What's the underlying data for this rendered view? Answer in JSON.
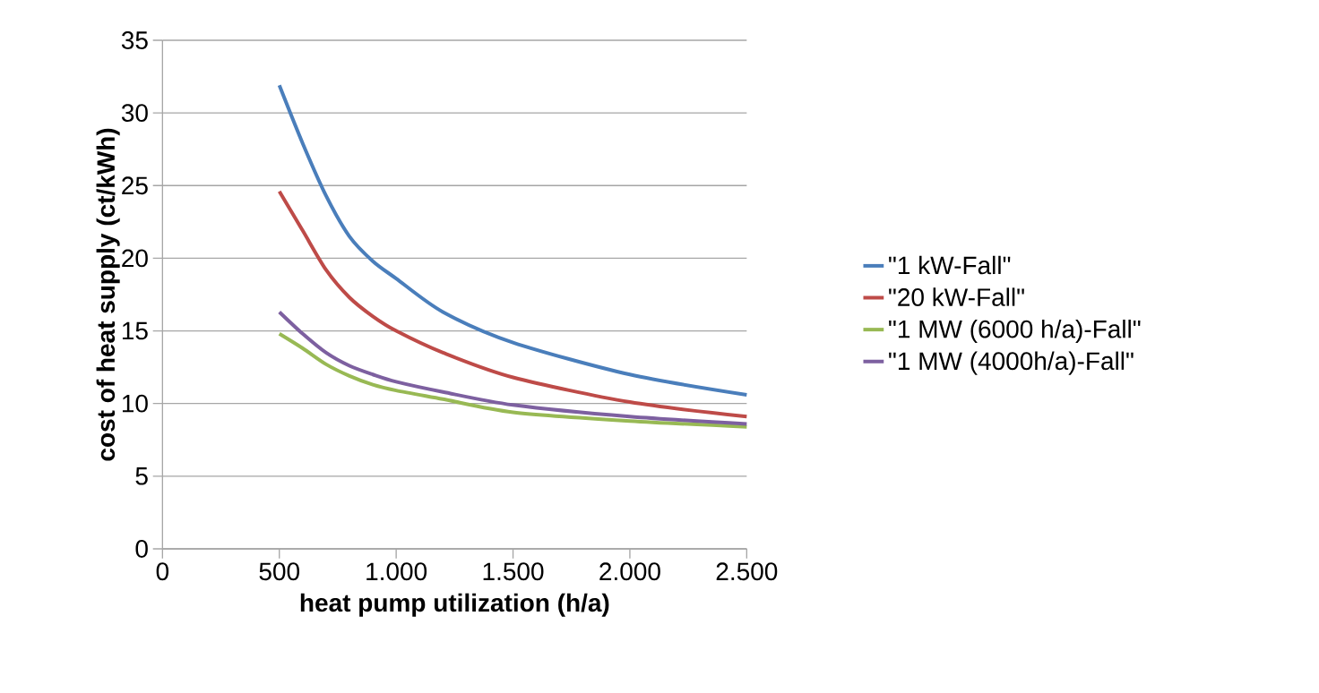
{
  "chart_data": {
    "type": "line",
    "xlabel": "heat pump utilization (h/a)",
    "ylabel": "cost of heat supply (ct/kWh)",
    "x": [
      500,
      600,
      700,
      800,
      900,
      1000,
      1200,
      1500,
      2000,
      2500
    ],
    "series": [
      {
        "name": "\"1 kW-Fall\"",
        "color": "#4a7ebb",
        "values": [
          31.9,
          27.9,
          24.3,
          21.5,
          19.8,
          18.6,
          16.3,
          14.2,
          12.0,
          10.6
        ]
      },
      {
        "name": "\"20 kW-Fall\"",
        "color": "#be4b48",
        "values": [
          24.6,
          21.9,
          19.2,
          17.3,
          16.0,
          15.0,
          13.5,
          11.8,
          10.1,
          9.1
        ]
      },
      {
        "name": "\"1 MW (6000 h/a)-Fall\"",
        "color": "#98b954",
        "values": [
          14.8,
          13.8,
          12.7,
          11.9,
          11.3,
          10.9,
          10.3,
          9.4,
          8.8,
          8.4
        ]
      },
      {
        "name": "\"1 MW (4000h/a)-Fall\"",
        "color": "#7d60a0",
        "values": [
          16.3,
          14.8,
          13.5,
          12.6,
          12.0,
          11.5,
          10.8,
          9.9,
          9.1,
          8.6
        ]
      }
    ],
    "xlim": [
      0,
      2500
    ],
    "ylim": [
      0,
      35
    ],
    "xticks": [
      0,
      500,
      {
        "value": 1000,
        "label": "1.000"
      },
      {
        "value": 1500,
        "label": "1.500"
      },
      {
        "value": 2000,
        "label": "2.000"
      },
      {
        "value": 2500,
        "label": "2.500"
      }
    ],
    "yticks": [
      0,
      5,
      10,
      15,
      20,
      25,
      30,
      35
    ],
    "grid": "y",
    "legend": "right",
    "marker": "none",
    "line_style": "solid"
  }
}
